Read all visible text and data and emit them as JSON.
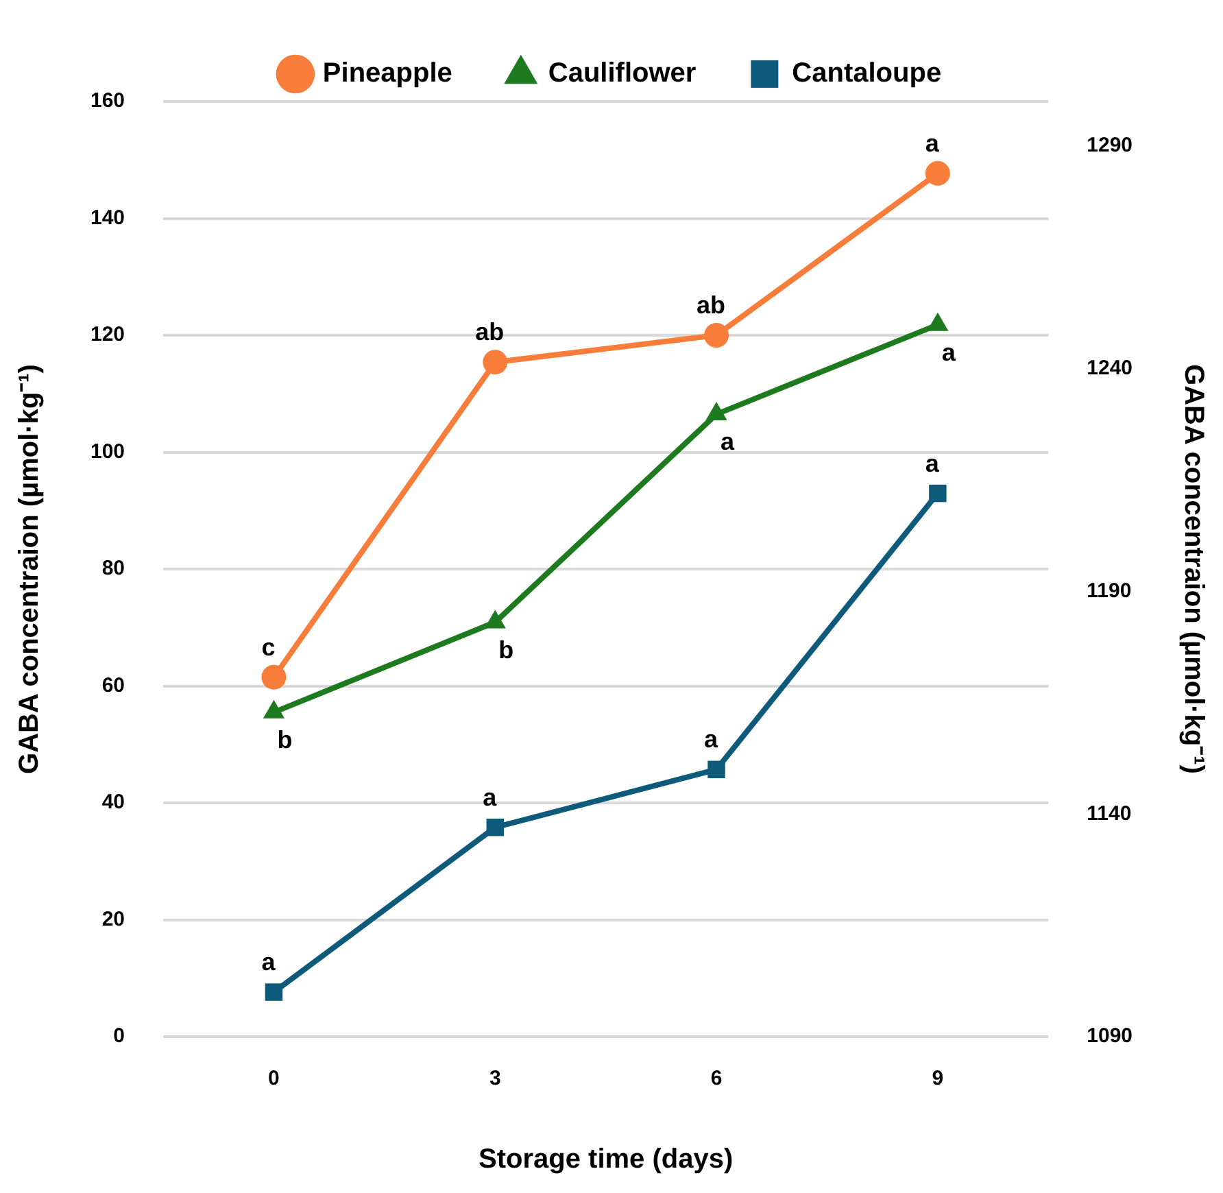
{
  "chart_data": {
    "type": "line",
    "xlabel": "Storage time (days)",
    "ylabel": "GABA concentraion (µmol·kg⁻¹)",
    "y2label": "GABA concentraion (µmol·kg⁻¹)",
    "categories": [
      "0",
      "3",
      "6",
      "9"
    ],
    "series": [
      {
        "name": "Pineapple",
        "color": "#f97d3a",
        "marker": "circle",
        "values": [
          61.5,
          115.4,
          120,
          147.7
        ],
        "value_labels": [
          "c",
          "ab",
          "ab",
          "a"
        ]
      },
      {
        "name": "Cauliflower",
        "color": "#1e7a1e",
        "marker": "triangle",
        "values": [
          55.5,
          70.9,
          106.5,
          121.8
        ],
        "value_labels": [
          "b",
          "b",
          "a",
          "a"
        ]
      },
      {
        "name": "Cantaloupe",
        "color": "#0e5a7a",
        "marker": "square",
        "axis": "y2",
        "values": [
          1100,
          1137,
          1150,
          1212
        ],
        "value_labels": [
          "a",
          "a",
          "a",
          "a"
        ]
      }
    ],
    "ylim": [
      0,
      160
    ],
    "yticks": [
      0,
      20,
      40,
      60,
      80,
      100,
      120,
      140,
      160
    ],
    "y2lim": [
      1090,
      1300
    ],
    "y2ticks": [
      1090,
      1140,
      1190,
      1240,
      1290
    ],
    "grid": "y",
    "legend": "top",
    "line_style": "solid"
  }
}
